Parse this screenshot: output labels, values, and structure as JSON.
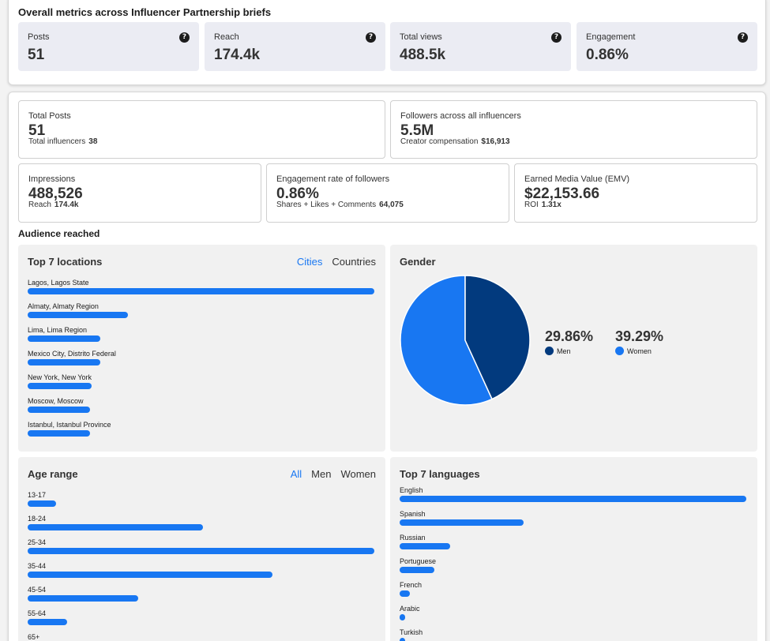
{
  "header": {
    "title": "Overall metrics across Influencer Partnership briefs"
  },
  "metrics": [
    {
      "label": "Posts",
      "value": "51"
    },
    {
      "label": "Reach",
      "value": "174.4k"
    },
    {
      "label": "Total views",
      "value": "488.5k"
    },
    {
      "label": "Engagement",
      "value": "0.86%"
    }
  ],
  "help_glyph": "?",
  "stats": {
    "total_posts": {
      "label": "Total Posts",
      "value": "51",
      "sub_label": "Total influencers",
      "sub_value": "38"
    },
    "followers": {
      "label": "Followers across all influencers",
      "value": "5.5M",
      "sub_label": "Creator compensation",
      "sub_value": "$16,913"
    },
    "impressions": {
      "label": "Impressions",
      "value": "488,526",
      "sub_label": "Reach",
      "sub_value": "174.4k"
    },
    "engagement_rate": {
      "label": "Engagement rate of followers",
      "value": "0.86%",
      "sub_label": "Shares + Likes + Comments",
      "sub_value": "64,075"
    },
    "emv": {
      "label": "Earned Media Value (EMV)",
      "value": "$22,153.66",
      "sub_label": "ROI",
      "sub_value": "1.31x"
    }
  },
  "audience": {
    "title": "Audience reached",
    "locations": {
      "title": "Top 7 locations",
      "toggles": [
        "Cities",
        "Countries"
      ],
      "active_toggle": "Cities",
      "items": [
        {
          "label": "Lagos, Lagos State",
          "value": 1.0
        },
        {
          "label": "Almaty, Almaty Region",
          "value": 0.29
        },
        {
          "label": "Lima, Lima Region",
          "value": 0.21
        },
        {
          "label": "Mexico City, Distrito Federal",
          "value": 0.21
        },
        {
          "label": "New York, New York",
          "value": 0.185
        },
        {
          "label": "Moscow, Moscow",
          "value": 0.18
        },
        {
          "label": "Istanbul, Istanbul Province",
          "value": 0.18
        }
      ]
    },
    "gender": {
      "title": "Gender",
      "men_pct": "29.86%",
      "men_label": "Men",
      "women_pct": "39.29%",
      "women_label": "Women",
      "men_share": 0.4318,
      "men_color": "#023a7e",
      "women_color": "#1877f2"
    },
    "age": {
      "title": "Age range",
      "toggles": [
        "All",
        "Men",
        "Women"
      ],
      "active_toggle": "All",
      "items": [
        {
          "label": "13-17",
          "value": 0.082
        },
        {
          "label": "18-24",
          "value": 0.505
        },
        {
          "label": "25-34",
          "value": 1.0
        },
        {
          "label": "35-44",
          "value": 0.706
        },
        {
          "label": "45-54",
          "value": 0.32
        },
        {
          "label": "55-64",
          "value": 0.114
        },
        {
          "label": "65+",
          "value": 0.02
        }
      ]
    },
    "languages": {
      "title": "Top 7 languages",
      "items": [
        {
          "label": "English",
          "value": 1.0
        },
        {
          "label": "Spanish",
          "value": 0.357
        },
        {
          "label": "Russian",
          "value": 0.145
        },
        {
          "label": "Portuguese",
          "value": 0.1
        },
        {
          "label": "French",
          "value": 0.03
        },
        {
          "label": "Arabic",
          "value": 0.015
        },
        {
          "label": "Turkish",
          "value": 0.012
        }
      ]
    }
  },
  "colors": {
    "accent": "#1877f2",
    "dark_blue": "#023a7e"
  }
}
